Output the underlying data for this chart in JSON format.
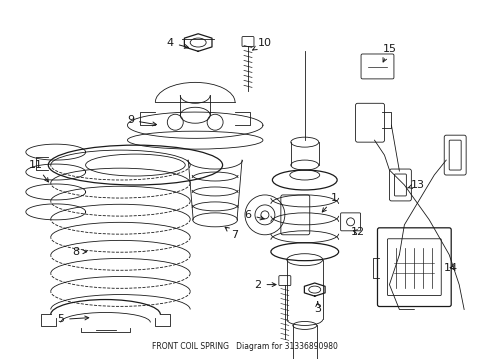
{
  "title": "FRONT COIL SPRING",
  "part_number": "31336890980",
  "background_color": "#ffffff",
  "line_color": "#1a1a1a",
  "fig_width": 4.9,
  "fig_height": 3.6,
  "dpi": 100
}
